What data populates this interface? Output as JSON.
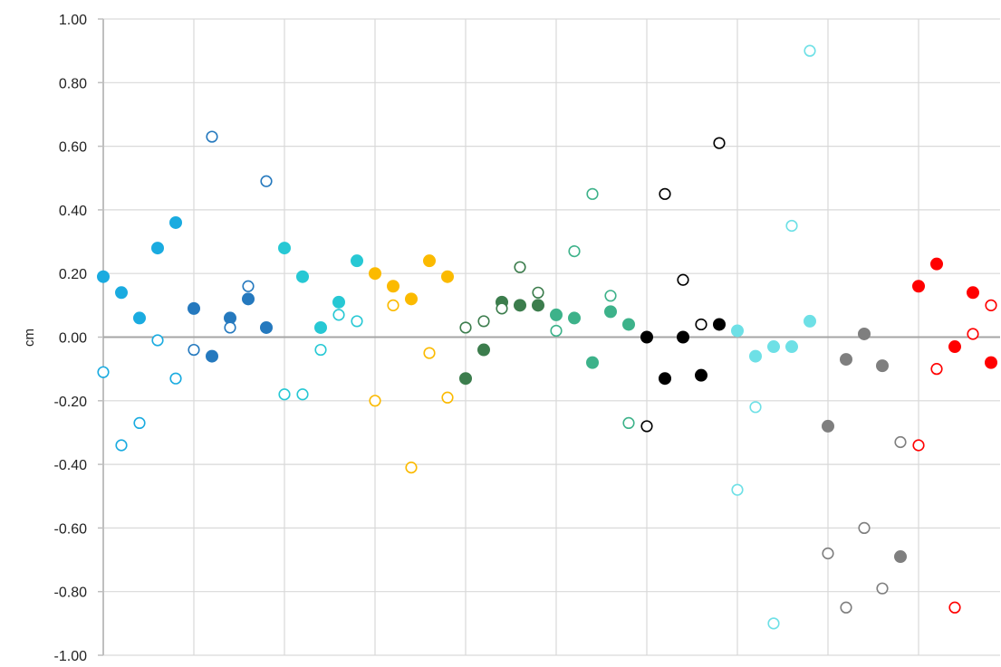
{
  "chart_data": {
    "type": "scatter",
    "title": "",
    "xlabel": "",
    "ylabel": "cm",
    "ylim": [
      -1.0,
      1.0
    ],
    "xlim": [
      0,
      49.5
    ],
    "yticks": [
      "1.00",
      "0.80",
      "0.60",
      "0.40",
      "0.20",
      "0.00",
      "-0.20",
      "-0.40",
      "-0.60",
      "-0.80",
      "-1.00"
    ],
    "ytick_values": [
      1.0,
      0.8,
      0.6,
      0.4,
      0.2,
      0.0,
      -0.2,
      -0.4,
      -0.6,
      -0.8,
      -1.0
    ],
    "vertical_gridlines_at_x": [
      5,
      10,
      15,
      20,
      25,
      30,
      35,
      40,
      45
    ],
    "grid": true,
    "series": [
      {
        "color": "#1AABE0",
        "marker": "filled",
        "points": [
          [
            0,
            0.19
          ],
          [
            1,
            0.14
          ],
          [
            2,
            0.06
          ],
          [
            3,
            0.28
          ],
          [
            4,
            0.36
          ]
        ]
      },
      {
        "color": "#1AABE0",
        "marker": "open",
        "points": [
          [
            0,
            -0.11
          ],
          [
            1,
            -0.34
          ],
          [
            2,
            -0.27
          ],
          [
            3,
            -0.01
          ],
          [
            4,
            -0.13
          ]
        ]
      },
      {
        "color": "#2579BE",
        "marker": "filled",
        "points": [
          [
            5,
            0.09
          ],
          [
            6,
            -0.06
          ],
          [
            7,
            0.06
          ],
          [
            8,
            0.12
          ],
          [
            9,
            0.03
          ]
        ]
      },
      {
        "color": "#2579BE",
        "marker": "open",
        "points": [
          [
            5,
            -0.04
          ],
          [
            6,
            0.63
          ],
          [
            7,
            0.03
          ],
          [
            8,
            0.16
          ],
          [
            9,
            0.49
          ]
        ]
      },
      {
        "color": "#27C8D4",
        "marker": "filled",
        "points": [
          [
            10,
            0.28
          ],
          [
            11,
            0.19
          ],
          [
            12,
            0.03
          ],
          [
            13,
            0.11
          ],
          [
            14,
            0.24
          ]
        ]
      },
      {
        "color": "#27C8D4",
        "marker": "open",
        "points": [
          [
            10,
            -0.18
          ],
          [
            11,
            -0.18
          ],
          [
            12,
            -0.04
          ],
          [
            13,
            0.07
          ],
          [
            14,
            0.05
          ]
        ]
      },
      {
        "color": "#FBBA00",
        "marker": "filled",
        "points": [
          [
            15,
            0.2
          ],
          [
            16,
            0.16
          ],
          [
            17,
            0.12
          ],
          [
            18,
            0.24
          ],
          [
            19,
            0.19
          ]
        ]
      },
      {
        "color": "#FBBA00",
        "marker": "open",
        "points": [
          [
            15,
            -0.2
          ],
          [
            16,
            0.1
          ],
          [
            17,
            -0.41
          ],
          [
            18,
            -0.05
          ],
          [
            19,
            -0.19
          ]
        ]
      },
      {
        "color": "#3C7D4D",
        "marker": "filled",
        "points": [
          [
            20,
            -0.13
          ],
          [
            21,
            -0.04
          ],
          [
            22,
            0.11
          ],
          [
            23,
            0.1
          ],
          [
            24,
            0.1
          ]
        ]
      },
      {
        "color": "#3C7D4D",
        "marker": "open",
        "points": [
          [
            20,
            0.03
          ],
          [
            21,
            0.05
          ],
          [
            22,
            0.09
          ],
          [
            23,
            0.22
          ],
          [
            24,
            0.14
          ]
        ]
      },
      {
        "color": "#3DB28A",
        "marker": "filled",
        "points": [
          [
            25,
            0.07
          ],
          [
            26,
            0.06
          ],
          [
            27,
            -0.08
          ],
          [
            28,
            0.08
          ],
          [
            29,
            0.04
          ]
        ]
      },
      {
        "color": "#3DB28A",
        "marker": "open",
        "points": [
          [
            25,
            0.02
          ],
          [
            26,
            0.27
          ],
          [
            27,
            0.45
          ],
          [
            28,
            0.13
          ],
          [
            29,
            -0.27
          ]
        ]
      },
      {
        "color": "#000000",
        "marker": "filled",
        "points": [
          [
            30,
            0.0
          ],
          [
            31,
            -0.13
          ],
          [
            32,
            0.0
          ],
          [
            33,
            -0.12
          ],
          [
            34,
            0.04
          ]
        ]
      },
      {
        "color": "#000000",
        "marker": "open",
        "points": [
          [
            30,
            -0.28
          ],
          [
            31,
            0.45
          ],
          [
            32,
            0.18
          ],
          [
            33,
            0.04
          ],
          [
            34,
            0.61
          ]
        ]
      },
      {
        "color": "#6EE0E6",
        "marker": "filled",
        "points": [
          [
            35,
            0.02
          ],
          [
            36,
            -0.06
          ],
          [
            37,
            -0.03
          ],
          [
            38,
            -0.03
          ],
          [
            39,
            0.05
          ]
        ]
      },
      {
        "color": "#6EE0E6",
        "marker": "open",
        "points": [
          [
            35,
            -0.48
          ],
          [
            36,
            -0.22
          ],
          [
            37,
            -0.9
          ],
          [
            38,
            0.35
          ],
          [
            39,
            0.9
          ]
        ]
      },
      {
        "color": "#7F7F7F",
        "marker": "filled",
        "points": [
          [
            40,
            -0.28
          ],
          [
            41,
            -0.07
          ],
          [
            42,
            0.01
          ],
          [
            43,
            -0.09
          ],
          [
            44,
            -0.69
          ]
        ]
      },
      {
        "color": "#7F7F7F",
        "marker": "open",
        "points": [
          [
            40,
            -0.68
          ],
          [
            41,
            -0.85
          ],
          [
            42,
            -0.6
          ],
          [
            43,
            -0.79
          ],
          [
            44,
            -0.33
          ]
        ]
      },
      {
        "color": "#FF0000",
        "marker": "filled",
        "points": [
          [
            45,
            0.16
          ],
          [
            46,
            0.23
          ],
          [
            47,
            -0.03
          ],
          [
            48,
            0.14
          ],
          [
            49,
            -0.08
          ]
        ]
      },
      {
        "color": "#FF0000",
        "marker": "open",
        "points": [
          [
            45,
            -0.34
          ],
          [
            46,
            -0.1
          ],
          [
            47,
            -0.85
          ],
          [
            48,
            0.01
          ],
          [
            49,
            0.1
          ]
        ]
      }
    ]
  }
}
